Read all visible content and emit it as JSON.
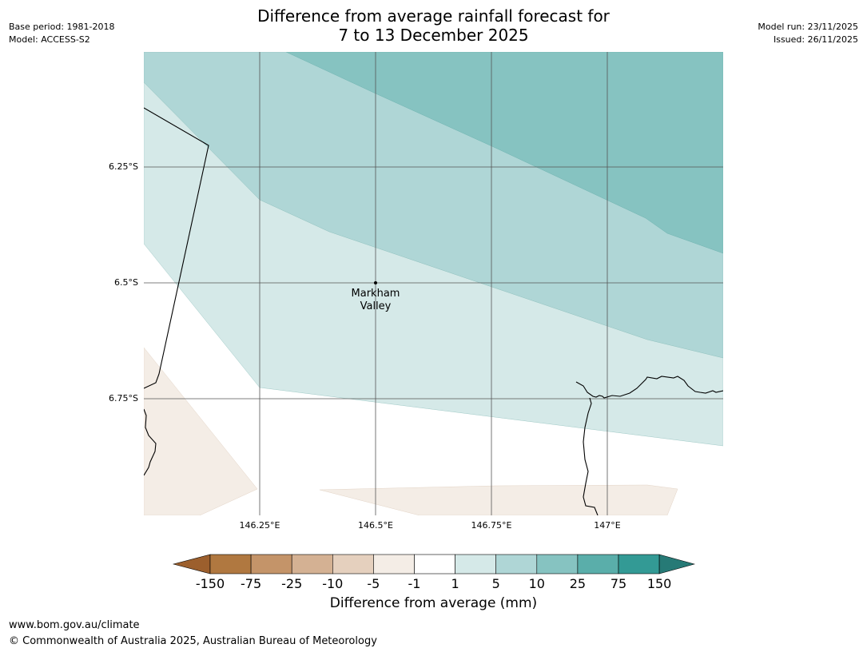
{
  "header": {
    "base_period": "Base period: 1981-2018",
    "model": "Model: ACCESS-S2",
    "model_run": "Model run: 23/11/2025",
    "issued": "Issued: 26/11/2025",
    "title_line1": "Difference from average rainfall forecast for",
    "title_line2": "7 to 13 December 2025"
  },
  "map": {
    "lat_labels": [
      "6.25°S",
      "6.5°S",
      "6.75°S"
    ],
    "lon_labels": [
      "146.25°E",
      "146.5°E",
      "146.75°E",
      "147°E"
    ],
    "place": {
      "name_line1": "Markham",
      "name_line2": "Valley"
    }
  },
  "legend": {
    "title": "Difference from average (mm)",
    "ticks": [
      "-150",
      "-75",
      "-25",
      "-10",
      "-5",
      "-1",
      "1",
      "5",
      "10",
      "25",
      "75",
      "150"
    ],
    "colors": [
      "#9c5f2d",
      "#b07840",
      "#c49469",
      "#d4b193",
      "#e5d0be",
      "#f4ede6",
      "#ffffff",
      "#d5e9e8",
      "#afd6d6",
      "#86c3c1",
      "#5aaeaa",
      "#339a95",
      "#267a76"
    ]
  },
  "footer": {
    "url": "www.bom.gov.au/climate",
    "copyright": "© Commonwealth of Australia 2025, Australian Bureau of Meteorology"
  }
}
